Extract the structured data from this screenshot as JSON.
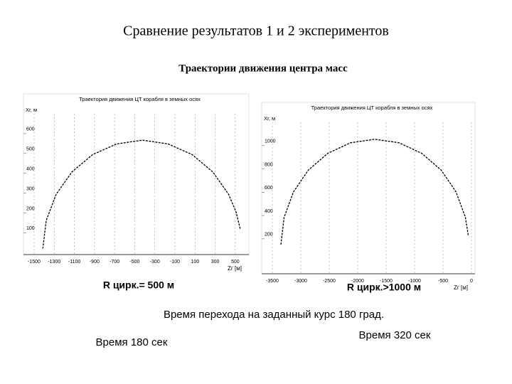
{
  "slide": {
    "title": "Сравнение результатов 1 и 2 экспериментов",
    "subtitle": "Траектории движения центра масс",
    "note": "Время перехода на заданный курс 180 град."
  },
  "chart_data": [
    {
      "type": "line",
      "title": "Траектория движения ЦТ корабля в земных осях",
      "x_label": "Zг [м]",
      "y_label": "Xг, м",
      "annotations": [
        "R цирк.= 500 м",
        "Время 180 сек"
      ],
      "grid": "x",
      "color": "#000000",
      "xlim": [
        -1500,
        600
      ],
      "xticks": [
        -1500,
        -1300,
        -1100,
        -900,
        -700,
        -500,
        -300,
        -100,
        100,
        300,
        500
      ],
      "ylim": [
        -10,
        700
      ],
      "yticks": [
        100,
        200,
        300,
        400,
        500,
        600
      ],
      "x": [
        -1414,
        -1380,
        -1281,
        -1124,
        -919,
        -680,
        -424,
        -168,
        71,
        276,
        433,
        507,
        551
      ],
      "values": [
        20,
        162,
        294,
        407,
        494,
        548,
        567,
        548,
        494,
        407,
        294,
        207,
        115
      ]
    },
    {
      "type": "line",
      "title": "Траектория движения ЦТ корабля в земных осях",
      "x_label": "Zг [м]",
      "y_label": "Xг, м",
      "annotations": [
        "R цирк.>1000 м",
        "Время 320 сек"
      ],
      "grid": "x",
      "color": "#000000",
      "xlim": [
        -3500,
        0
      ],
      "xticks": [
        -3500,
        -3000,
        -2500,
        -2000,
        -1500,
        -1000,
        -500,
        0
      ],
      "ylim": [
        -100,
        1200
      ],
      "yticks": [
        200,
        400,
        600,
        800,
        1000
      ],
      "x": [
        -3350,
        -3294,
        -3129,
        -2867,
        -2525,
        -2127,
        -1700,
        -1273,
        -875,
        -533,
        -271,
        -106,
        -56
      ],
      "values": [
        150,
        384,
        603,
        790,
        934,
        1024,
        1055,
        1024,
        934,
        790,
        603,
        384,
        229
      ]
    }
  ]
}
